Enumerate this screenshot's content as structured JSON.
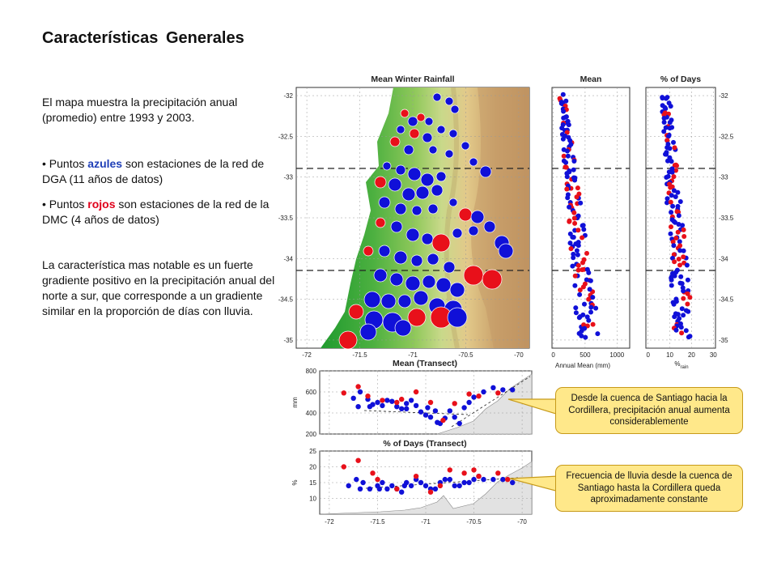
{
  "slide": {
    "title": "Características Generales",
    "intro": "El mapa muestra la precipitación anual (promedio) entre 1993 y 2003.",
    "bullet1": {
      "prefix": "• Puntos ",
      "highlight": "azules",
      "suffix": " son estaciones de la red de DGA (11 años de datos)"
    },
    "bullet2": {
      "prefix": "• Puntos ",
      "highlight": "rojos",
      "suffix": " son estaciones de la red de la DMC (4 años de datos)"
    },
    "conclusion": "La característica mas notable es un fuerte gradiente positivo en la precipitación anual del norte a sur, que corresponde a un gradiente similar en la proporción de días con lluvia.",
    "callout1": "Desde la cuenca de Santiago hacia la Cordillera, precipitación anual aumenta considerablemente",
    "callout2": "Frecuencia de lluvia desde la cuenca de Santiago hasta la Cordillera queda aproximadamente constante"
  },
  "colors": {
    "dga": "#1010d8",
    "dmc": "#e8101a",
    "callout_bg": "#ffe88a",
    "callout_border": "#c79a1a"
  },
  "chart_data": [
    {
      "type": "scatter",
      "title": "Mean Winter Rainfall",
      "xticks": [
        "-72",
        "-71.5",
        "-71",
        "-70.5",
        "-70"
      ],
      "yticks": [
        "-32",
        "-32.5",
        "-33",
        "-33.5",
        "-34",
        "-34.5",
        "-35"
      ],
      "xlim": [
        -72.1,
        -69.9
      ],
      "ylim": [
        -35.1,
        -31.9
      ],
      "dashed_lines_lat": [
        -32.9,
        -34.15
      ]
    },
    {
      "type": "scatter",
      "title": "Mean",
      "xlabel": "Annual Mean (mm)",
      "xticks": [
        "0",
        "500",
        "1000"
      ],
      "xlim": [
        -20,
        1200
      ],
      "ylim": [
        -35.1,
        -31.9
      ],
      "dashed_lines_lat": [
        -32.9,
        -34.15
      ]
    },
    {
      "type": "scatter",
      "title": "% of Days",
      "xlabel": "%rain",
      "xticks": [
        "0",
        "10",
        "20",
        "30"
      ],
      "yticks": [
        "-32",
        "-32.5",
        "-33",
        "-33.5",
        "-34",
        "-34.5",
        "-35"
      ],
      "xlim": [
        -1,
        31
      ],
      "ylim": [
        -35.1,
        -31.9
      ],
      "dashed_lines_lat": [
        -32.9,
        -34.15
      ]
    },
    {
      "type": "scatter",
      "title": "Mean (Transect)",
      "ylabel": "mm",
      "yticks": [
        "800",
        "600",
        "400",
        "200"
      ],
      "xlim": [
        -72.1,
        -69.9
      ],
      "ylim": [
        200,
        800
      ],
      "dga": [
        [
          -71.75,
          540
        ],
        [
          -71.68,
          600
        ],
        [
          -71.6,
          530
        ],
        [
          -71.55,
          480
        ],
        [
          -71.5,
          500
        ],
        [
          -71.45,
          470
        ],
        [
          -71.4,
          520
        ],
        [
          -71.35,
          510
        ],
        [
          -71.3,
          460
        ],
        [
          -71.25,
          440
        ],
        [
          -71.2,
          490
        ],
        [
          -71.15,
          520
        ],
        [
          -71.1,
          470
        ],
        [
          -71.05,
          410
        ],
        [
          -71.0,
          380
        ],
        [
          -70.95,
          360
        ],
        [
          -70.9,
          420
        ],
        [
          -70.85,
          300
        ],
        [
          -70.8,
          350
        ],
        [
          -70.75,
          420
        ],
        [
          -70.7,
          360
        ],
        [
          -70.65,
          300
        ],
        [
          -70.6,
          450
        ],
        [
          -70.55,
          500
        ],
        [
          -70.5,
          550
        ],
        [
          -70.4,
          600
        ],
        [
          -70.3,
          640
        ],
        [
          -70.2,
          620
        ],
        [
          -70.1,
          620
        ],
        [
          -71.7,
          460
        ],
        [
          -71.58,
          460
        ],
        [
          -71.2,
          440
        ],
        [
          -70.98,
          450
        ],
        [
          -70.88,
          310
        ]
      ],
      "dmc": [
        [
          -71.85,
          590
        ],
        [
          -71.7,
          650
        ],
        [
          -71.6,
          560
        ],
        [
          -71.45,
          520
        ],
        [
          -71.3,
          500
        ],
        [
          -71.1,
          600
        ],
        [
          -70.95,
          500
        ],
        [
          -70.82,
          330
        ],
        [
          -70.7,
          490
        ],
        [
          -70.55,
          580
        ],
        [
          -70.45,
          560
        ],
        [
          -70.25,
          590
        ],
        [
          -71.25,
          530
        ]
      ]
    },
    {
      "type": "scatter",
      "title": "% of Days (Transect)",
      "ylabel": "%",
      "yticks": [
        "25",
        "20",
        "15",
        "10"
      ],
      "xticks": [
        "-72",
        "-71.5",
        "-71",
        "-70.5",
        "-70"
      ],
      "xlim": [
        -72.1,
        -69.9
      ],
      "ylim": [
        5,
        25
      ],
      "dga": [
        [
          -71.8,
          14
        ],
        [
          -71.72,
          16
        ],
        [
          -71.65,
          15
        ],
        [
          -71.58,
          13
        ],
        [
          -71.5,
          14
        ],
        [
          -71.45,
          15
        ],
        [
          -71.4,
          13
        ],
        [
          -71.35,
          14
        ],
        [
          -71.3,
          13
        ],
        [
          -71.25,
          12
        ],
        [
          -71.2,
          15
        ],
        [
          -71.15,
          14
        ],
        [
          -71.1,
          16
        ],
        [
          -71.05,
          15
        ],
        [
          -71.0,
          14
        ],
        [
          -70.95,
          13
        ],
        [
          -70.9,
          13
        ],
        [
          -70.85,
          15
        ],
        [
          -70.8,
          16
        ],
        [
          -70.75,
          16
        ],
        [
          -70.7,
          14
        ],
        [
          -70.65,
          14
        ],
        [
          -70.6,
          15
        ],
        [
          -70.55,
          15
        ],
        [
          -70.5,
          16
        ],
        [
          -70.45,
          17
        ],
        [
          -70.4,
          16
        ],
        [
          -70.3,
          16
        ],
        [
          -70.2,
          16
        ],
        [
          -70.1,
          15
        ],
        [
          -71.68,
          13
        ],
        [
          -71.48,
          13
        ],
        [
          -71.22,
          14
        ]
      ],
      "dmc": [
        [
          -71.85,
          20
        ],
        [
          -71.7,
          22
        ],
        [
          -71.55,
          18
        ],
        [
          -71.5,
          16
        ],
        [
          -71.3,
          13
        ],
        [
          -71.1,
          17
        ],
        [
          -70.95,
          12
        ],
        [
          -70.85,
          14
        ],
        [
          -70.75,
          19
        ],
        [
          -70.6,
          18
        ],
        [
          -70.5,
          19
        ],
        [
          -70.45,
          17
        ],
        [
          -70.25,
          18
        ],
        [
          -70.15,
          16
        ]
      ]
    }
  ]
}
